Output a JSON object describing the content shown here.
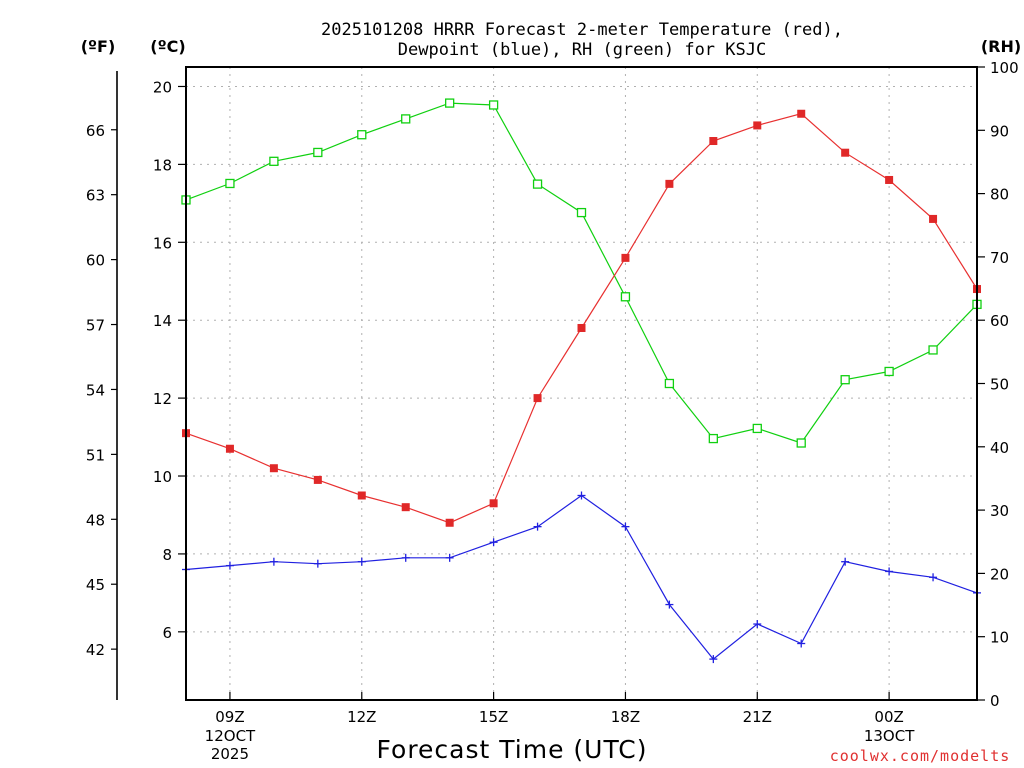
{
  "title_line1": "2025101208 HRRR Forecast 2-meter Temperature (red),",
  "title_line2": "Dewpoint (blue), RH (green) for KSJC",
  "axis_units": {
    "fahrenheit": "(ºF)",
    "celsius": "(ºC)",
    "rh": "(RH)"
  },
  "watermark": "coolwx.com/modelts",
  "colors": {
    "temperature": "#e83030",
    "dewpoint": "#2020e0",
    "rh": "#10d010",
    "temperature_marker": "#e02828"
  },
  "chart_data": {
    "type": "line",
    "title": "2025101208 HRRR Forecast 2-meter Temperature (red), Dewpoint (blue), RH (green) for KSJC",
    "xlabel": "Forecast Time (UTC)",
    "ylabel": "(ºC)",
    "y2label": "(RH)",
    "y3label": "(ºF)",
    "x_unit": "hour offset from 2025-10-12 08Z",
    "xlim": [
      0,
      18
    ],
    "ylim_c": [
      4.25,
      20.5
    ],
    "ylim_f": [
      39.65,
      68.9
    ],
    "ylim_rh": [
      0,
      100
    ],
    "x_ticks": [
      {
        "x": 1,
        "label": "09Z",
        "sublabels": [
          "12OCT",
          "2025"
        ]
      },
      {
        "x": 4,
        "label": "12Z",
        "sublabels": []
      },
      {
        "x": 7,
        "label": "15Z",
        "sublabels": []
      },
      {
        "x": 10,
        "label": "18Z",
        "sublabels": []
      },
      {
        "x": 13,
        "label": "21Z",
        "sublabels": []
      },
      {
        "x": 16,
        "label": "00Z",
        "sublabels": [
          "13OCT"
        ]
      }
    ],
    "y_ticks_c": [
      6,
      8,
      10,
      12,
      14,
      16,
      18,
      20
    ],
    "y_ticks_f": [
      42,
      45,
      48,
      51,
      54,
      57,
      60,
      63,
      66
    ],
    "y_ticks_rh": [
      0,
      10,
      20,
      30,
      40,
      50,
      60,
      70,
      80,
      90,
      100
    ],
    "grid": true,
    "series": [
      {
        "name": "Temperature",
        "unit": "C",
        "marker": "filled-square",
        "x": [
          0,
          1,
          2,
          3,
          4,
          5,
          6,
          7,
          8,
          9,
          10,
          11,
          12,
          13,
          14,
          15,
          16,
          17,
          18
        ],
        "values": [
          11.1,
          10.7,
          10.2,
          9.9,
          9.5,
          9.2,
          8.8,
          9.3,
          12.0,
          13.8,
          15.6,
          17.5,
          18.6,
          19.0,
          19.3,
          18.3,
          17.6,
          16.6,
          14.8
        ]
      },
      {
        "name": "Dewpoint",
        "unit": "C",
        "marker": "plus",
        "x": [
          0,
          1,
          2,
          3,
          4,
          5,
          6,
          7,
          8,
          9,
          10,
          11,
          12,
          13,
          14,
          15,
          16,
          17,
          18
        ],
        "values": [
          7.6,
          7.7,
          7.8,
          7.75,
          7.8,
          7.9,
          7.9,
          8.3,
          8.7,
          9.5,
          8.7,
          6.7,
          5.3,
          6.2,
          5.7,
          7.8,
          7.55,
          7.4,
          7.0
        ]
      },
      {
        "name": "RH",
        "unit": "%",
        "marker": "open-square",
        "x": [
          0,
          1,
          2,
          3,
          4,
          5,
          6,
          7,
          8,
          9,
          10,
          11,
          12,
          13,
          14,
          15,
          16,
          17,
          18
        ],
        "values": [
          79,
          81.6,
          85.1,
          86.5,
          89.3,
          91.8,
          94.3,
          94.0,
          81.5,
          77.0,
          63.7,
          50.0,
          41.3,
          42.9,
          40.6,
          50.6,
          51.9,
          55.3,
          62.5
        ]
      }
    ]
  }
}
